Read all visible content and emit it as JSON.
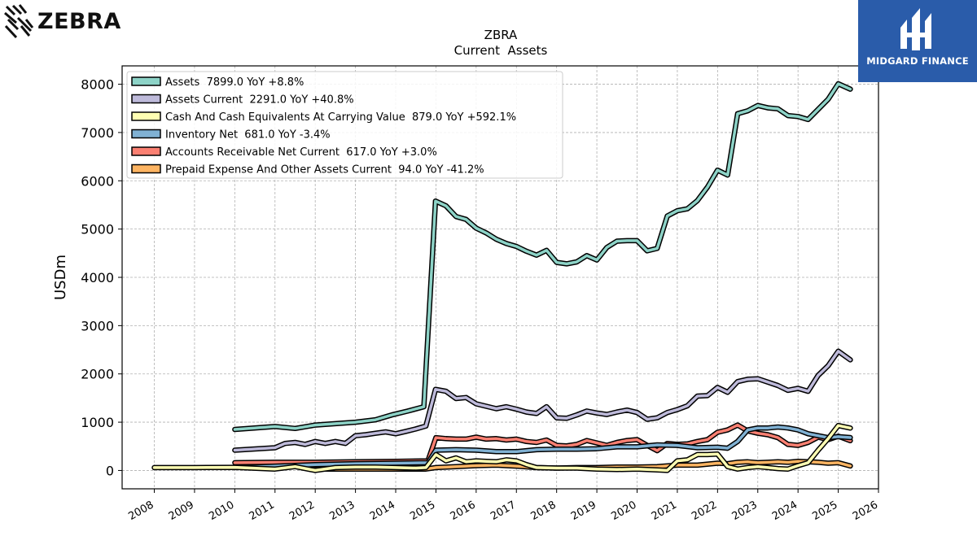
{
  "brand": {
    "left_logo_text": "ZEBRA",
    "right_logo_text": "MIDGARD FINANCE",
    "right_logo_color": "#2a5caa"
  },
  "chart_data": {
    "type": "line",
    "title": "ZBRA",
    "subtitle": "Current  Assets",
    "xlabel": "",
    "ylabel": "USDm",
    "xlim": [
      2007.2,
      2026.0
    ],
    "ylim": [
      -380,
      8380
    ],
    "grid": true,
    "legend_position": "top-left",
    "x_ticks": [
      "2008",
      "2009",
      "2010",
      "2011",
      "2012",
      "2013",
      "2014",
      "2015",
      "2016",
      "2017",
      "2018",
      "2019",
      "2020",
      "2021",
      "2022",
      "2023",
      "2024",
      "2025",
      "2026"
    ],
    "y_ticks": [
      "0",
      "1000",
      "2000",
      "3000",
      "4000",
      "5000",
      "6000",
      "7000",
      "8000"
    ],
    "series": [
      {
        "name": "Assets",
        "legend": "Assets  7899.0 YoY +8.8%",
        "color": "#8dd3c7",
        "points": [
          [
            2010.0,
            850
          ],
          [
            2011.0,
            910
          ],
          [
            2011.5,
            870
          ],
          [
            2012.0,
            940
          ],
          [
            2012.5,
            970
          ],
          [
            2013.0,
            1000
          ],
          [
            2013.5,
            1050
          ],
          [
            2013.9,
            1150
          ],
          [
            2014.3,
            1230
          ],
          [
            2014.7,
            1320
          ],
          [
            2014.99,
            5580
          ],
          [
            2015.25,
            5480
          ],
          [
            2015.5,
            5260
          ],
          [
            2015.75,
            5200
          ],
          [
            2016.0,
            5020
          ],
          [
            2016.25,
            4920
          ],
          [
            2016.5,
            4790
          ],
          [
            2016.75,
            4700
          ],
          [
            2017.0,
            4640
          ],
          [
            2017.25,
            4540
          ],
          [
            2017.5,
            4460
          ],
          [
            2017.75,
            4560
          ],
          [
            2018.0,
            4310
          ],
          [
            2018.25,
            4280
          ],
          [
            2018.5,
            4320
          ],
          [
            2018.75,
            4450
          ],
          [
            2019.0,
            4360
          ],
          [
            2019.25,
            4620
          ],
          [
            2019.5,
            4750
          ],
          [
            2019.75,
            4760
          ],
          [
            2020.0,
            4760
          ],
          [
            2020.25,
            4550
          ],
          [
            2020.5,
            4600
          ],
          [
            2020.75,
            5270
          ],
          [
            2021.0,
            5380
          ],
          [
            2021.25,
            5420
          ],
          [
            2021.5,
            5590
          ],
          [
            2021.75,
            5870
          ],
          [
            2022.0,
            6220
          ],
          [
            2022.25,
            6120
          ],
          [
            2022.5,
            7390
          ],
          [
            2022.75,
            7450
          ],
          [
            2023.0,
            7560
          ],
          [
            2023.25,
            7510
          ],
          [
            2023.5,
            7490
          ],
          [
            2023.75,
            7350
          ],
          [
            2024.0,
            7330
          ],
          [
            2024.25,
            7270
          ],
          [
            2024.5,
            7480
          ],
          [
            2024.75,
            7690
          ],
          [
            2025.0,
            8010
          ],
          [
            2025.3,
            7899
          ]
        ]
      },
      {
        "name": "Assets Current",
        "legend": "Assets Current  2291.0 YoY +40.8%",
        "color": "#bebada",
        "points": [
          [
            2010.0,
            420
          ],
          [
            2011.0,
            470
          ],
          [
            2011.25,
            560
          ],
          [
            2011.5,
            580
          ],
          [
            2011.75,
            540
          ],
          [
            2012.0,
            600
          ],
          [
            2012.25,
            560
          ],
          [
            2012.5,
            600
          ],
          [
            2012.75,
            560
          ],
          [
            2013.0,
            720
          ],
          [
            2013.25,
            740
          ],
          [
            2013.5,
            770
          ],
          [
            2013.75,
            800
          ],
          [
            2014.0,
            760
          ],
          [
            2014.25,
            810
          ],
          [
            2014.5,
            860
          ],
          [
            2014.75,
            920
          ],
          [
            2014.99,
            1680
          ],
          [
            2015.25,
            1640
          ],
          [
            2015.5,
            1490
          ],
          [
            2015.75,
            1510
          ],
          [
            2016.0,
            1380
          ],
          [
            2016.25,
            1330
          ],
          [
            2016.5,
            1280
          ],
          [
            2016.75,
            1320
          ],
          [
            2017.0,
            1270
          ],
          [
            2017.25,
            1210
          ],
          [
            2017.5,
            1180
          ],
          [
            2017.75,
            1320
          ],
          [
            2018.0,
            1090
          ],
          [
            2018.25,
            1080
          ],
          [
            2018.5,
            1150
          ],
          [
            2018.75,
            1230
          ],
          [
            2019.0,
            1190
          ],
          [
            2019.25,
            1160
          ],
          [
            2019.5,
            1210
          ],
          [
            2019.75,
            1250
          ],
          [
            2020.0,
            1200
          ],
          [
            2020.25,
            1060
          ],
          [
            2020.5,
            1090
          ],
          [
            2020.75,
            1200
          ],
          [
            2021.0,
            1260
          ],
          [
            2021.25,
            1340
          ],
          [
            2021.5,
            1540
          ],
          [
            2021.75,
            1550
          ],
          [
            2022.0,
            1720
          ],
          [
            2022.25,
            1620
          ],
          [
            2022.5,
            1840
          ],
          [
            2022.75,
            1890
          ],
          [
            2023.0,
            1900
          ],
          [
            2023.25,
            1830
          ],
          [
            2023.5,
            1760
          ],
          [
            2023.75,
            1660
          ],
          [
            2024.0,
            1700
          ],
          [
            2024.25,
            1640
          ],
          [
            2024.5,
            1970
          ],
          [
            2024.75,
            2170
          ],
          [
            2025.0,
            2470
          ],
          [
            2025.3,
            2291
          ]
        ]
      },
      {
        "name": "Cash And Cash Equivalents At Carrying Value",
        "legend": "Cash And Cash Equivalents At Carrying Value  879.0 YoY +592.1%",
        "color": "#ffffb3",
        "points": [
          [
            2008.0,
            60
          ],
          [
            2009.0,
            60
          ],
          [
            2010.0,
            65
          ],
          [
            2011.0,
            30
          ],
          [
            2011.5,
            80
          ],
          [
            2012.0,
            0
          ],
          [
            2012.5,
            60
          ],
          [
            2013.0,
            70
          ],
          [
            2013.5,
            70
          ],
          [
            2014.0,
            60
          ],
          [
            2014.5,
            50
          ],
          [
            2014.75,
            60
          ],
          [
            2015.0,
            330
          ],
          [
            2015.25,
            200
          ],
          [
            2015.5,
            260
          ],
          [
            2015.75,
            180
          ],
          [
            2016.0,
            200
          ],
          [
            2016.25,
            190
          ],
          [
            2016.5,
            180
          ],
          [
            2016.75,
            220
          ],
          [
            2017.0,
            200
          ],
          [
            2017.25,
            120
          ],
          [
            2017.5,
            60
          ],
          [
            2018.0,
            50
          ],
          [
            2018.5,
            50
          ],
          [
            2019.0,
            30
          ],
          [
            2019.5,
            20
          ],
          [
            2020.0,
            30
          ],
          [
            2020.5,
            10
          ],
          [
            2020.75,
            0
          ],
          [
            2021.0,
            200
          ],
          [
            2021.25,
            220
          ],
          [
            2021.5,
            330
          ],
          [
            2021.75,
            330
          ],
          [
            2022.0,
            340
          ],
          [
            2022.25,
            80
          ],
          [
            2022.5,
            30
          ],
          [
            2022.75,
            60
          ],
          [
            2023.0,
            80
          ],
          [
            2023.25,
            60
          ],
          [
            2023.5,
            40
          ],
          [
            2023.75,
            30
          ],
          [
            2024.0,
            100
          ],
          [
            2024.25,
            160
          ],
          [
            2024.5,
            420
          ],
          [
            2024.75,
            660
          ],
          [
            2025.0,
            930
          ],
          [
            2025.3,
            879
          ]
        ]
      },
      {
        "name": "Inventory Net",
        "legend": "Inventory Net  681.0 YoY -3.4%",
        "color": "#80b1d3",
        "points": [
          [
            2010.0,
            60
          ],
          [
            2011.0,
            90
          ],
          [
            2012.0,
            120
          ],
          [
            2013.0,
            140
          ],
          [
            2014.0,
            150
          ],
          [
            2014.8,
            160
          ],
          [
            2015.0,
            420
          ],
          [
            2015.5,
            430
          ],
          [
            2016.0,
            420
          ],
          [
            2016.5,
            390
          ],
          [
            2017.0,
            390
          ],
          [
            2017.5,
            430
          ],
          [
            2018.0,
            440
          ],
          [
            2018.5,
            440
          ],
          [
            2019.0,
            450
          ],
          [
            2019.5,
            490
          ],
          [
            2020.0,
            490
          ],
          [
            2020.5,
            530
          ],
          [
            2021.0,
            520
          ],
          [
            2021.5,
            470
          ],
          [
            2022.0,
            480
          ],
          [
            2022.25,
            460
          ],
          [
            2022.5,
            600
          ],
          [
            2022.75,
            840
          ],
          [
            2023.0,
            880
          ],
          [
            2023.25,
            880
          ],
          [
            2023.5,
            900
          ],
          [
            2023.75,
            880
          ],
          [
            2024.0,
            840
          ],
          [
            2024.25,
            760
          ],
          [
            2024.5,
            720
          ],
          [
            2024.75,
            680
          ],
          [
            2025.0,
            700
          ],
          [
            2025.3,
            681
          ]
        ]
      },
      {
        "name": "Accounts Receivable Net Current",
        "legend": "Accounts Receivable Net Current  617.0 YoY +3.0%",
        "color": "#fb8072",
        "points": [
          [
            2010.0,
            160
          ],
          [
            2011.0,
            170
          ],
          [
            2012.0,
            170
          ],
          [
            2013.0,
            180
          ],
          [
            2014.0,
            190
          ],
          [
            2014.8,
            200
          ],
          [
            2015.0,
            680
          ],
          [
            2015.25,
            660
          ],
          [
            2015.5,
            650
          ],
          [
            2015.75,
            650
          ],
          [
            2016.0,
            690
          ],
          [
            2016.25,
            650
          ],
          [
            2016.5,
            660
          ],
          [
            2016.75,
            630
          ],
          [
            2017.0,
            650
          ],
          [
            2017.25,
            600
          ],
          [
            2017.5,
            580
          ],
          [
            2017.75,
            630
          ],
          [
            2018.0,
            520
          ],
          [
            2018.25,
            510
          ],
          [
            2018.5,
            540
          ],
          [
            2018.75,
            620
          ],
          [
            2019.0,
            570
          ],
          [
            2019.25,
            520
          ],
          [
            2019.5,
            580
          ],
          [
            2019.75,
            620
          ],
          [
            2020.0,
            640
          ],
          [
            2020.25,
            520
          ],
          [
            2020.5,
            410
          ],
          [
            2020.75,
            560
          ],
          [
            2021.0,
            540
          ],
          [
            2021.25,
            550
          ],
          [
            2021.5,
            600
          ],
          [
            2021.75,
            640
          ],
          [
            2022.0,
            790
          ],
          [
            2022.25,
            840
          ],
          [
            2022.5,
            940
          ],
          [
            2022.75,
            820
          ],
          [
            2023.0,
            770
          ],
          [
            2023.25,
            740
          ],
          [
            2023.5,
            680
          ],
          [
            2023.75,
            540
          ],
          [
            2024.0,
            520
          ],
          [
            2024.25,
            580
          ],
          [
            2024.5,
            690
          ],
          [
            2024.75,
            640
          ],
          [
            2025.0,
            710
          ],
          [
            2025.3,
            617
          ]
        ]
      },
      {
        "name": "Prepaid Expense And Other Assets Current",
        "legend": "Prepaid Expense And Other Assets Current  94.0 YoY -41.2%",
        "color": "#fdb462",
        "points": [
          [
            2012.0,
            30
          ],
          [
            2013.0,
            30
          ],
          [
            2014.0,
            30
          ],
          [
            2014.75,
            30
          ],
          [
            2015.0,
            60
          ],
          [
            2015.5,
            80
          ],
          [
            2016.0,
            100
          ],
          [
            2016.5,
            110
          ],
          [
            2017.0,
            90
          ],
          [
            2017.5,
            60
          ],
          [
            2018.0,
            50
          ],
          [
            2018.5,
            60
          ],
          [
            2019.0,
            60
          ],
          [
            2019.5,
            70
          ],
          [
            2020.0,
            70
          ],
          [
            2020.5,
            80
          ],
          [
            2021.0,
            110
          ],
          [
            2021.5,
            110
          ],
          [
            2022.0,
            150
          ],
          [
            2022.25,
            140
          ],
          [
            2022.5,
            170
          ],
          [
            2022.75,
            180
          ],
          [
            2023.0,
            160
          ],
          [
            2023.25,
            170
          ],
          [
            2023.5,
            180
          ],
          [
            2023.75,
            170
          ],
          [
            2024.0,
            190
          ],
          [
            2024.25,
            180
          ],
          [
            2024.5,
            170
          ],
          [
            2024.75,
            150
          ],
          [
            2025.0,
            160
          ],
          [
            2025.3,
            94
          ]
        ]
      }
    ]
  }
}
